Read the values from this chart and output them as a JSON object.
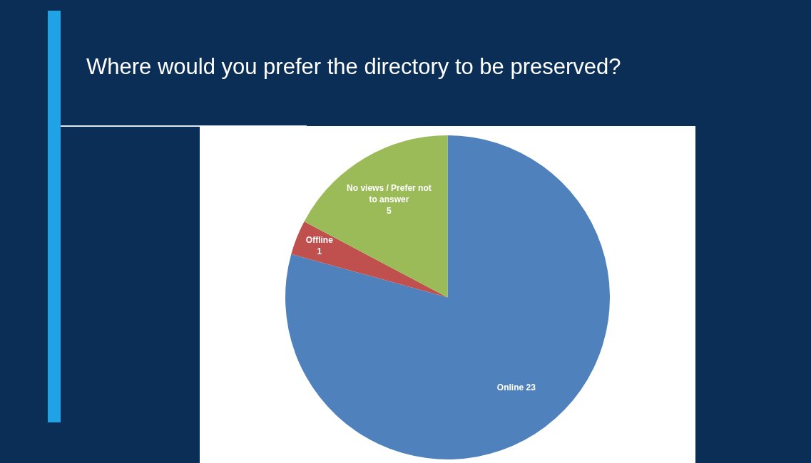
{
  "chart_data": {
    "type": "pie",
    "title": "Where would you prefer the directory to be preserved?",
    "categories": [
      "Online",
      "Offline",
      "No views / Prefer not to answer"
    ],
    "values": [
      23,
      1,
      5
    ],
    "colors": [
      "#4f81bd",
      "#c0504d",
      "#9bbb59"
    ],
    "data_labels": true,
    "legend": false
  }
}
